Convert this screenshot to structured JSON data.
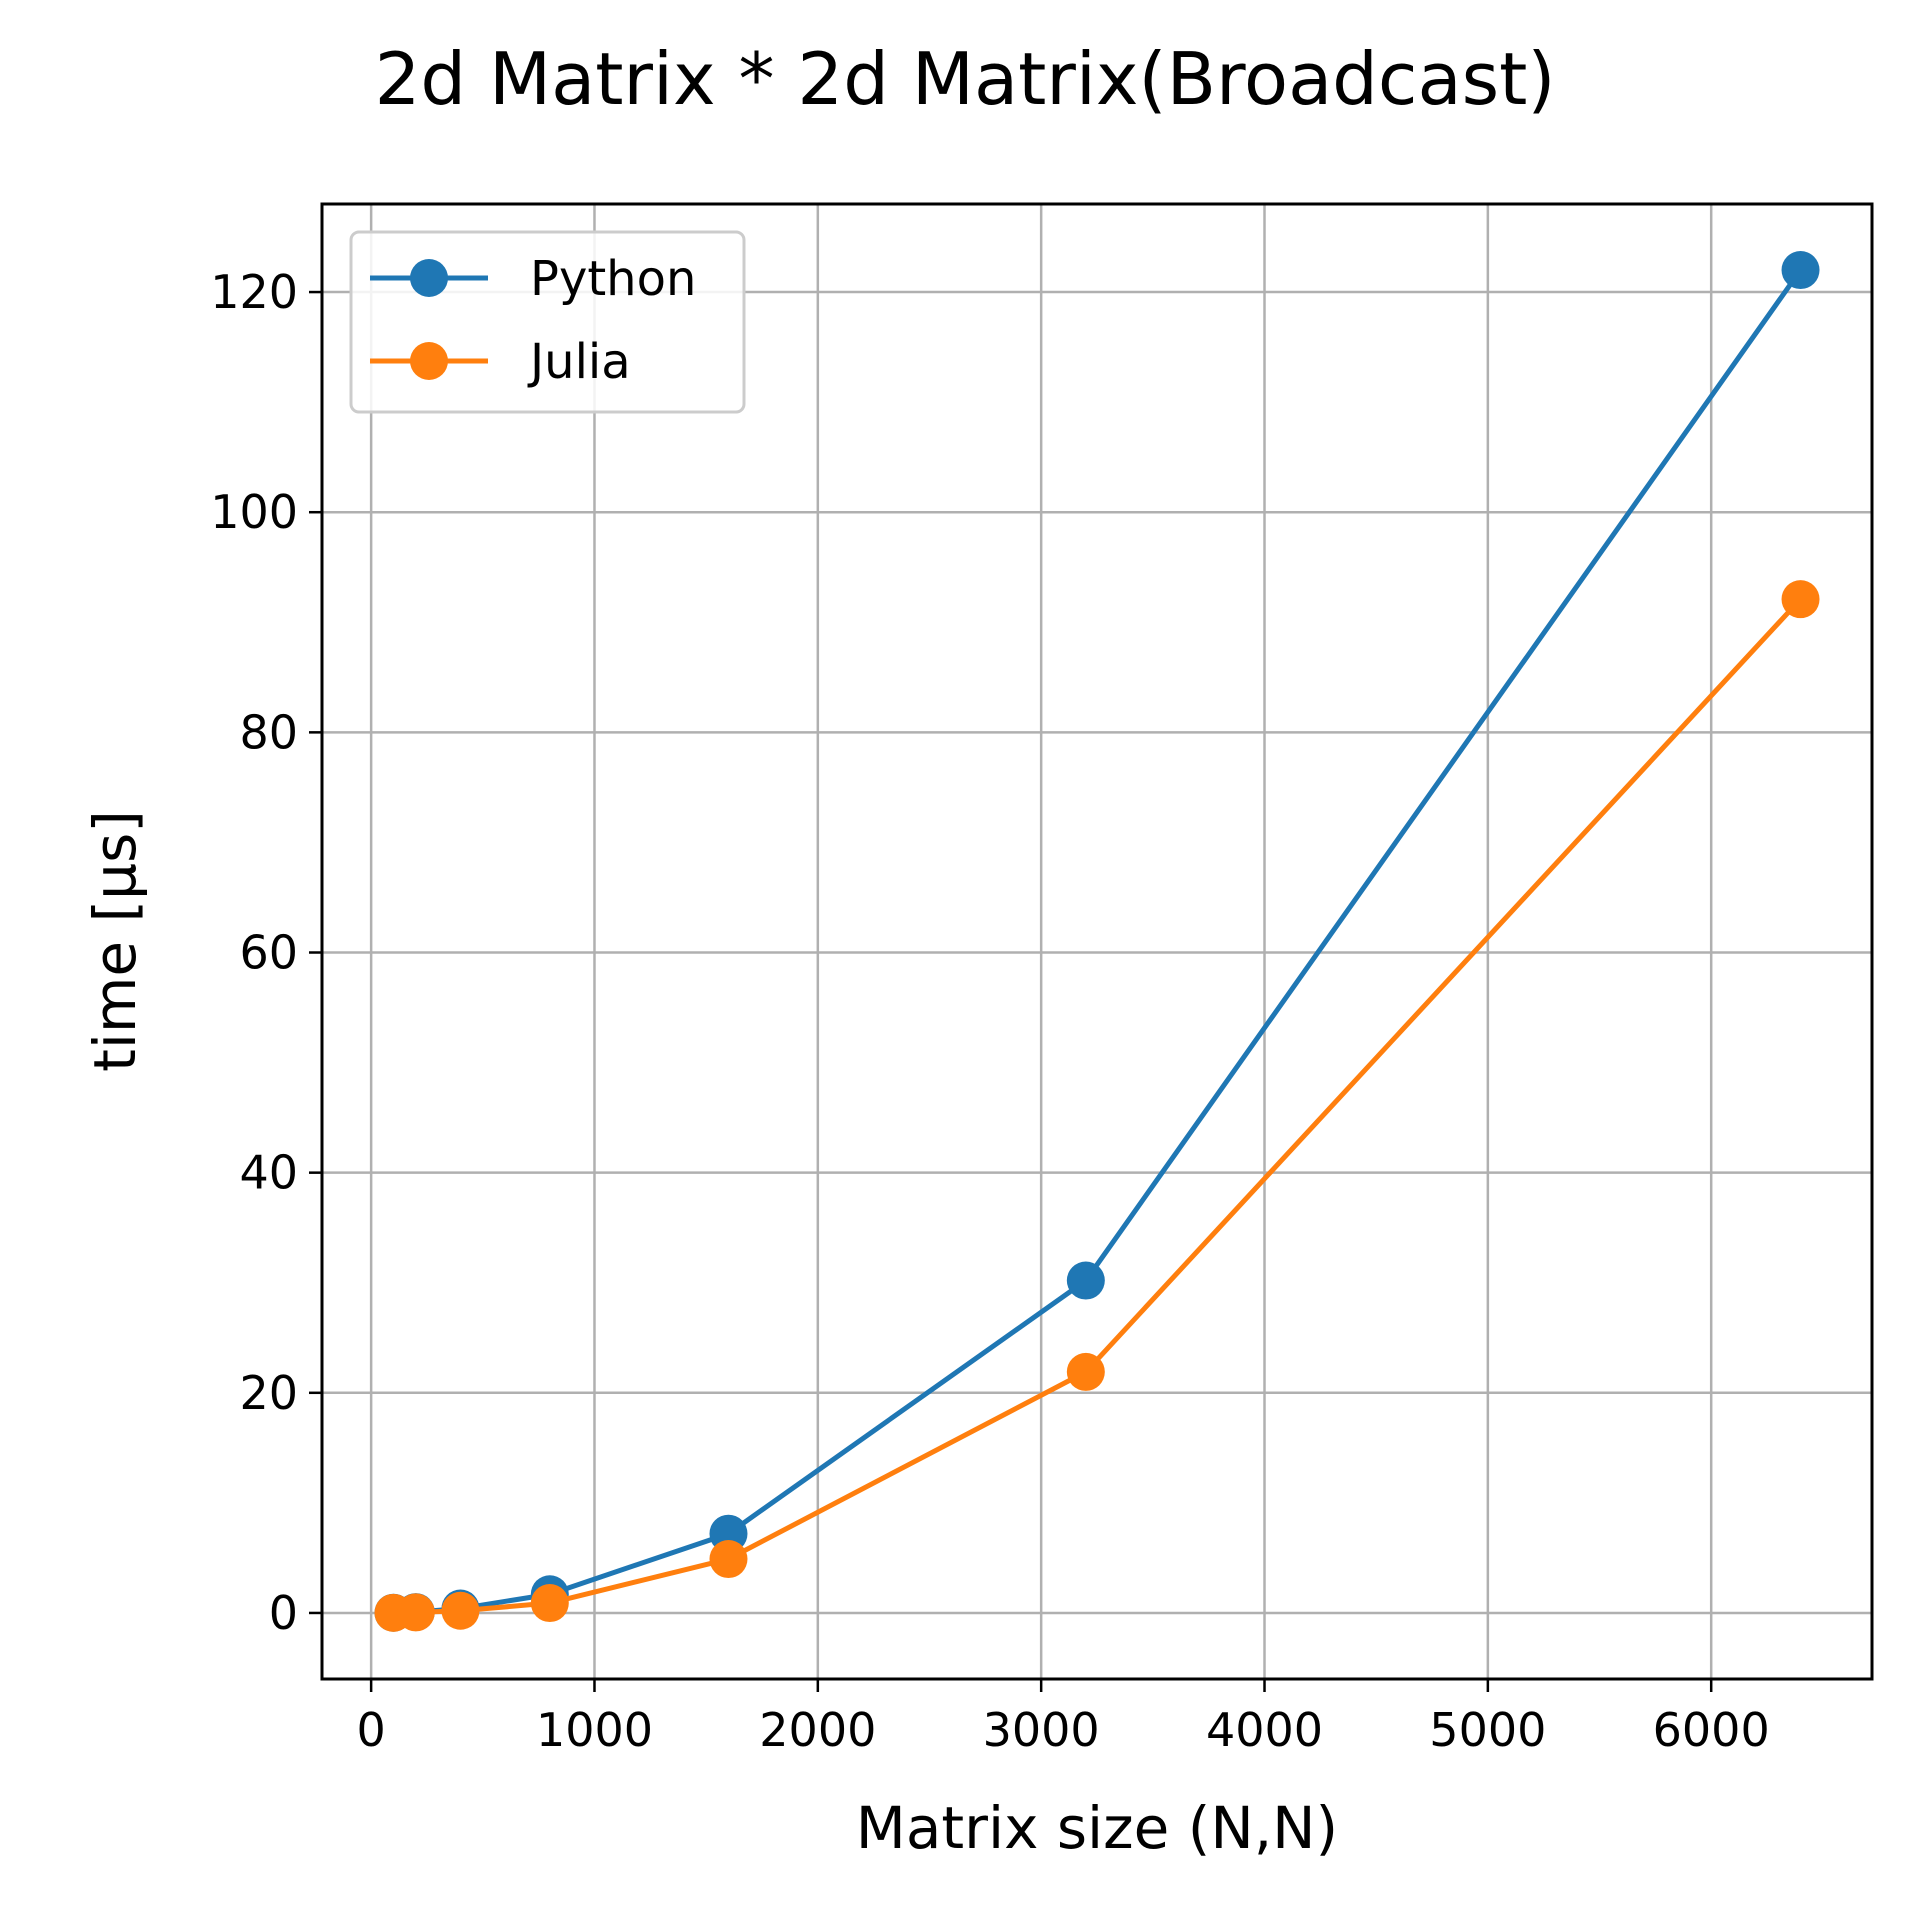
{
  "chart_data": {
    "type": "line",
    "title": "2d Matrix * 2d Matrix(Broadcast)",
    "xlabel": "Matrix size (N,N)",
    "ylabel": "time [μs]",
    "xlim": [
      -220,
      6720
    ],
    "ylim": [
      -6,
      128
    ],
    "xticks": [
      0,
      1000,
      2000,
      3000,
      4000,
      5000,
      6000
    ],
    "yticks": [
      0,
      20,
      40,
      60,
      80,
      100,
      120
    ],
    "grid": true,
    "legend_position": "top-left",
    "series": [
      {
        "name": "Python",
        "color": "#1f77b4",
        "x": [
          100,
          200,
          400,
          800,
          1600,
          3200,
          6400
        ],
        "y": [
          0.02,
          0.08,
          0.4,
          1.7,
          7.2,
          30.2,
          122.0
        ]
      },
      {
        "name": "Julia",
        "color": "#ff7f0e",
        "x": [
          100,
          200,
          400,
          800,
          1600,
          3200,
          6400
        ],
        "y": [
          0.01,
          0.05,
          0.2,
          0.9,
          4.9,
          21.9,
          92.1
        ]
      }
    ]
  }
}
